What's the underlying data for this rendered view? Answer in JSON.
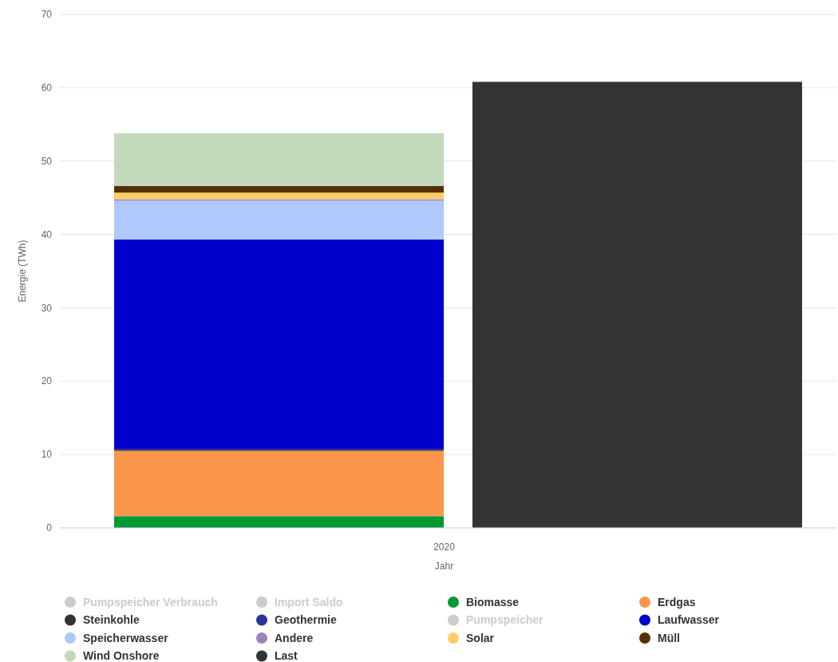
{
  "chart_data": {
    "type": "bar",
    "stacked": true,
    "xlabel": "Jahr",
    "ylabel": "Energie (TWh)",
    "categories": [
      null,
      null
    ],
    "annotations": [
      "2020"
    ],
    "ylim": [
      0,
      70
    ],
    "yticks": [
      0,
      10,
      20,
      30,
      40,
      50,
      60,
      70
    ],
    "grid": "y",
    "legend": "bottom",
    "series": [
      {
        "name": "Pumpspeicher Verbrauch",
        "color": "#cccccc",
        "values": [
          null,
          null
        ]
      },
      {
        "name": "Import Saldo",
        "color": "#cccccc",
        "values": [
          null,
          null
        ]
      },
      {
        "name": "Biomasse",
        "color": "#009933",
        "values": [
          1.6,
          null
        ]
      },
      {
        "name": "Erdgas",
        "color": "#f9964b",
        "values": [
          8.9,
          null
        ]
      },
      {
        "name": "Steinkohle",
        "color": "#333333",
        "values": [
          0.2,
          null
        ]
      },
      {
        "name": "Geothermie",
        "color": "#2c3399",
        "values": [
          0,
          null
        ]
      },
      {
        "name": "Pumpspeicher",
        "color": "#cccccc",
        "values": [
          null,
          null
        ]
      },
      {
        "name": "Laufwasser",
        "color": "#0000cc",
        "values": [
          28.6,
          null
        ]
      },
      {
        "name": "Speicherwasser",
        "color": "#afc8fd",
        "values": [
          5.3,
          null
        ]
      },
      {
        "name": "Andere",
        "color": "#9c82bb",
        "values": [
          0.2,
          null
        ]
      },
      {
        "name": "Solar",
        "color": "#ffcc66",
        "values": [
          0.9,
          null
        ]
      },
      {
        "name": "Müll",
        "color": "#553003",
        "values": [
          0.9,
          null
        ]
      },
      {
        "name": "Wind Onshore",
        "color": "#c3d9bb",
        "values": [
          7.2,
          null
        ]
      },
      {
        "name": "Last",
        "color": "#333333",
        "values": [
          null,
          60.8
        ]
      }
    ]
  }
}
